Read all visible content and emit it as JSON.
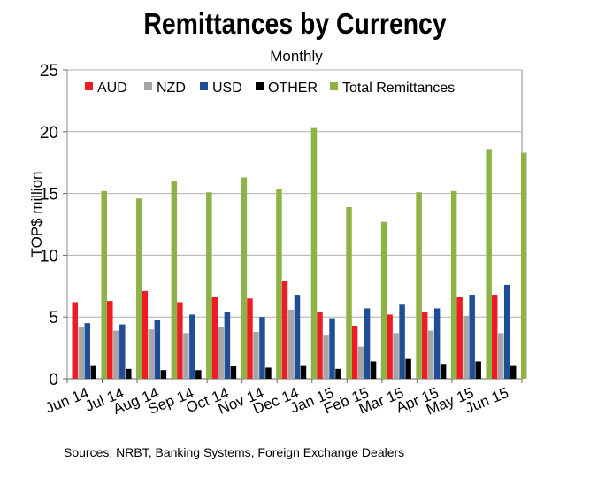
{
  "chart_data": {
    "type": "bar",
    "title": "Remittances by Currency",
    "subtitle": "Monthly",
    "ylabel": "TOP$ million",
    "source": "Sources: NRBT, Banking Systems, Foreign Exchange Dealers",
    "ylim": [
      0,
      25
    ],
    "yticks": [
      0,
      5,
      10,
      15,
      20,
      25
    ],
    "grid": true,
    "legend_position": "top",
    "categories": [
      "Jun 14",
      "Jul 14",
      "Aug 14",
      "Sep 14",
      "Oct 14",
      "Nov 14",
      "Dec 14",
      "Jan 15",
      "Feb 15",
      "Mar 15",
      "Apr 15",
      "May 15",
      "Jun 15"
    ],
    "series": [
      {
        "name": "AUD",
        "color": "#ee1c25",
        "values": [
          6.2,
          6.3,
          7.1,
          6.2,
          6.6,
          6.5,
          7.9,
          5.4,
          4.3,
          5.2,
          5.4,
          6.6,
          6.8
        ]
      },
      {
        "name": "NZD",
        "color": "#a6a6a6",
        "values": [
          4.2,
          3.9,
          4.0,
          3.7,
          4.2,
          3.8,
          5.6,
          3.5,
          2.6,
          3.7,
          3.9,
          5.1,
          3.7
        ]
      },
      {
        "name": "USD",
        "color": "#1f4e96",
        "values": [
          4.5,
          4.4,
          4.8,
          5.2,
          5.4,
          5.0,
          6.8,
          4.9,
          5.7,
          6.0,
          5.7,
          6.8,
          7.6
        ]
      },
      {
        "name": "OTHER",
        "color": "#000000",
        "values": [
          1.1,
          0.8,
          0.7,
          0.7,
          1.0,
          0.9,
          1.1,
          0.8,
          1.4,
          1.6,
          1.2,
          1.4,
          1.1
        ]
      },
      {
        "name": "Total Remittances",
        "color": "#8db347",
        "values": [
          15.2,
          14.6,
          16.0,
          15.1,
          16.3,
          15.4,
          20.3,
          13.9,
          12.7,
          15.1,
          15.2,
          18.6,
          18.3
        ]
      }
    ]
  }
}
